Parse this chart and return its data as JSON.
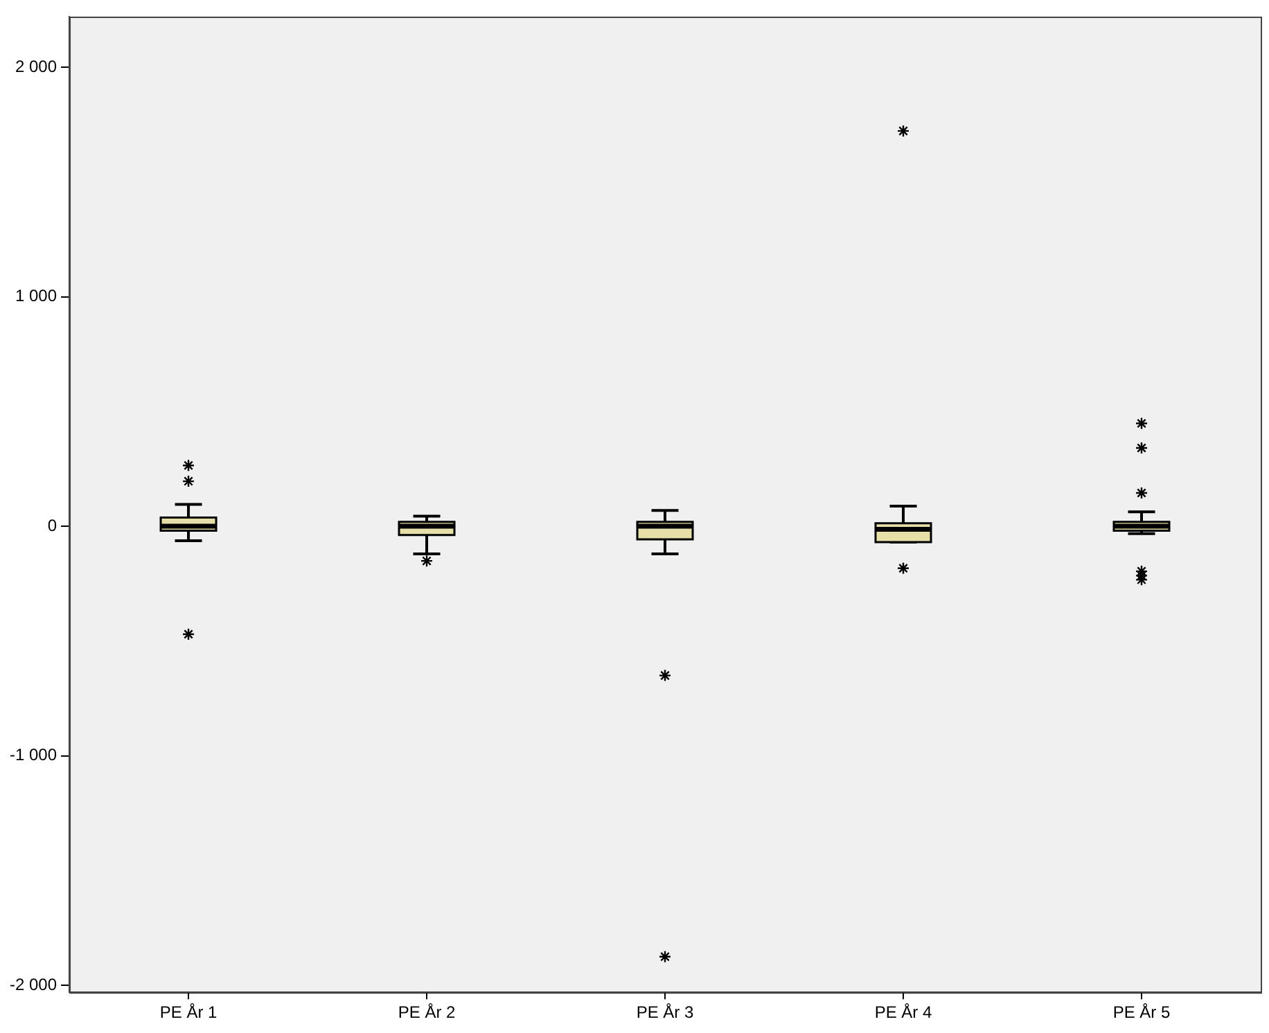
{
  "chart_data": {
    "type": "box",
    "categories": [
      "PE År 1",
      "PE År 2",
      "PE År 3",
      "PE År 4",
      "PE År 5"
    ],
    "color": "#e6dfa8",
    "boxes": [
      {
        "low": -63,
        "q1": -19,
        "median": 0,
        "q3": 38,
        "high": 95,
        "outliers": [
          265,
          196,
          -470
        ]
      },
      {
        "low": -120,
        "q1": -38,
        "median": 0,
        "q3": 19,
        "high": 44,
        "outliers": [
          -151
        ]
      },
      {
        "low": -120,
        "q1": -57,
        "median": 0,
        "q3": 19,
        "high": 69,
        "outliers": [
          -650,
          -1875
        ]
      },
      {
        "low": -69,
        "q1": -69,
        "median": -13,
        "q3": 13,
        "high": 88,
        "outliers": [
          -183,
          1722
        ]
      },
      {
        "low": -32,
        "q1": -19,
        "median": 0,
        "q3": 19,
        "high": 63,
        "outliers": [
          448,
          341,
          145,
          -196,
          -215,
          -233
        ]
      }
    ],
    "ylim": [
      -2030,
      2220
    ],
    "yticks": [
      {
        "value": -2000,
        "label": "-2 000"
      },
      {
        "value": -1000,
        "label": "-1 000"
      },
      {
        "value": 0,
        "label": "0"
      },
      {
        "value": 1000,
        "label": "1 000"
      },
      {
        "value": 2000,
        "label": "2 000"
      }
    ],
    "grid": false,
    "legend": false,
    "marker": "star"
  }
}
